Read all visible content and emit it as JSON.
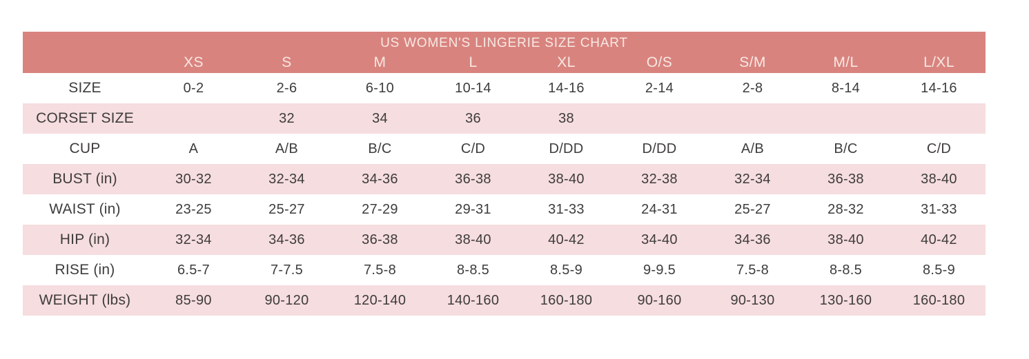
{
  "chart_data": {
    "type": "table",
    "title": "US WOMEN'S LINGERIE SIZE CHART",
    "columns": [
      "XS",
      "S",
      "M",
      "L",
      "XL",
      "O/S",
      "S/M",
      "M/L",
      "L/XL"
    ],
    "rows": [
      {
        "label": "SIZE",
        "values": [
          "0-2",
          "2-6",
          "6-10",
          "10-14",
          "14-16",
          "2-14",
          "2-8",
          "8-14",
          "14-16"
        ]
      },
      {
        "label": "CORSET SIZE",
        "values": [
          "",
          "32",
          "34",
          "36",
          "38",
          "",
          "",
          "",
          ""
        ]
      },
      {
        "label": "CUP",
        "values": [
          "A",
          "A/B",
          "B/C",
          "C/D",
          "D/DD",
          "D/DD",
          "A/B",
          "B/C",
          "C/D"
        ]
      },
      {
        "label": "BUST (in)",
        "values": [
          "30-32",
          "32-34",
          "34-36",
          "36-38",
          "38-40",
          "32-38",
          "32-34",
          "36-38",
          "38-40"
        ]
      },
      {
        "label": "WAIST (in)",
        "values": [
          "23-25",
          "25-27",
          "27-29",
          "29-31",
          "31-33",
          "24-31",
          "25-27",
          "28-32",
          "31-33"
        ]
      },
      {
        "label": "HIP (in)",
        "values": [
          "32-34",
          "34-36",
          "36-38",
          "38-40",
          "40-42",
          "34-40",
          "34-36",
          "38-40",
          "40-42"
        ]
      },
      {
        "label": "RISE (in)",
        "values": [
          "6.5-7",
          "7-7.5",
          "7.5-8",
          "8-8.5",
          "8.5-9",
          "9-9.5",
          "7.5-8",
          "8-8.5",
          "8.5-9"
        ]
      },
      {
        "label": "WEIGHT (lbs)",
        "values": [
          "85-90",
          "90-120",
          "120-140",
          "140-160",
          "160-180",
          "90-160",
          "90-130",
          "130-160",
          "160-180"
        ]
      }
    ],
    "layout": {
      "legend": "none",
      "grid": "off",
      "striped_rows": true
    },
    "colors": {
      "header_bg": "#D9837F",
      "header_text": "#F7E9E3",
      "stripe_bg": "#F6DDDF",
      "body_text": "#3E3C3C",
      "page_bg": "#FFFFFF"
    }
  }
}
